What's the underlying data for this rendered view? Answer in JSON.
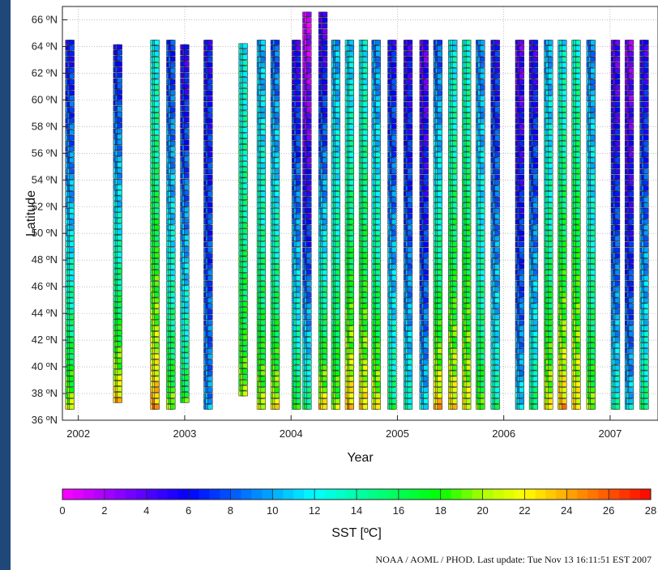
{
  "chart_data": {
    "type": "scatter",
    "title": "",
    "xlabel": "Year",
    "ylabel": "Latitude",
    "xlim": [
      2001.85,
      2007.45
    ],
    "ylim": [
      36,
      67
    ],
    "x_ticks": [
      "2002",
      "2003",
      "2004",
      "2005",
      "2006",
      "2007"
    ],
    "x_tick_values": [
      2002,
      2003,
      2004,
      2005,
      2006,
      2007
    ],
    "y_ticks": [
      "36 ºN",
      "38 ºN",
      "40 ºN",
      "42 ºN",
      "44 ºN",
      "46 ºN",
      "48 ºN",
      "50 ºN",
      "52 ºN",
      "54 ºN",
      "56 ºN",
      "58 ºN",
      "60 ºN",
      "62 ºN",
      "64 ºN",
      "66 ºN"
    ],
    "y_tick_values": [
      36,
      38,
      40,
      42,
      44,
      46,
      48,
      50,
      52,
      54,
      56,
      58,
      60,
      62,
      64,
      66
    ],
    "grid": true,
    "colorbar": {
      "label": "SST [ºC]",
      "min": 0,
      "max": 28,
      "ticks": [
        "0",
        "2",
        "4",
        "6",
        "8",
        "10",
        "12",
        "14",
        "16",
        "18",
        "20",
        "22",
        "24",
        "26",
        "28"
      ],
      "tick_values": [
        0,
        2,
        4,
        6,
        8,
        10,
        12,
        14,
        16,
        18,
        20,
        22,
        24,
        26,
        28
      ],
      "colors": [
        "#ff00ff",
        "#aa00ff",
        "#5500ff",
        "#0000ff",
        "#0055ff",
        "#00aaff",
        "#00ffff",
        "#00ffaa",
        "#00ff55",
        "#00ff00",
        "#aaff00",
        "#ffff00",
        "#ffaa00",
        "#ff5500",
        "#ff0000"
      ]
    },
    "transects": [
      {
        "x": 2001.92,
        "lat_min": 37,
        "lat_max": 64.3,
        "sst_south": 21,
        "sst_north": 6
      },
      {
        "x": 2002.37,
        "lat_min": 37.5,
        "lat_max": 64.3,
        "sst_south": 24,
        "sst_north": 6
      },
      {
        "x": 2002.72,
        "lat_min": 37,
        "lat_max": 64.3,
        "sst_south": 25,
        "sst_north": 12
      },
      {
        "x": 2002.87,
        "lat_min": 37,
        "lat_max": 64.3,
        "sst_south": 20,
        "sst_north": 7
      },
      {
        "x": 2003.0,
        "lat_min": 37.5,
        "lat_max": 64.3,
        "sst_south": 18,
        "sst_north": 5
      },
      {
        "x": 2003.22,
        "lat_min": 37,
        "lat_max": 64.3,
        "sst_south": 10,
        "sst_north": 6
      },
      {
        "x": 2003.55,
        "lat_min": 38,
        "lat_max": 64.3,
        "sst_south": 20,
        "sst_north": 12
      },
      {
        "x": 2003.72,
        "lat_min": 37,
        "lat_max": 64.3,
        "sst_south": 21,
        "sst_north": 10
      },
      {
        "x": 2003.85,
        "lat_min": 37,
        "lat_max": 64.3,
        "sst_south": 22,
        "sst_north": 8
      },
      {
        "x": 2004.05,
        "lat_min": 37,
        "lat_max": 64.3,
        "sst_south": 18,
        "sst_north": 5
      },
      {
        "x": 2004.15,
        "lat_min": 37,
        "lat_max": 66.6,
        "sst_south": 16,
        "sst_north": 1
      },
      {
        "x": 2004.3,
        "lat_min": 37,
        "lat_max": 66.6,
        "sst_south": 23,
        "sst_north": 4
      },
      {
        "x": 2004.42,
        "lat_min": 37,
        "lat_max": 64.3,
        "sst_south": 20,
        "sst_north": 10
      },
      {
        "x": 2004.55,
        "lat_min": 37,
        "lat_max": 64.3,
        "sst_south": 24,
        "sst_north": 11
      },
      {
        "x": 2004.68,
        "lat_min": 37,
        "lat_max": 64.3,
        "sst_south": 23,
        "sst_north": 12
      },
      {
        "x": 2004.8,
        "lat_min": 37,
        "lat_max": 64.3,
        "sst_south": 22,
        "sst_north": 9
      },
      {
        "x": 2004.95,
        "lat_min": 37,
        "lat_max": 64.3,
        "sst_south": 16,
        "sst_north": 6
      },
      {
        "x": 2005.1,
        "lat_min": 37,
        "lat_max": 64.3,
        "sst_south": 14,
        "sst_north": 5
      },
      {
        "x": 2005.25,
        "lat_min": 37,
        "lat_max": 64.3,
        "sst_south": 12,
        "sst_north": 4
      },
      {
        "x": 2005.38,
        "lat_min": 37,
        "lat_max": 64.3,
        "sst_south": 24,
        "sst_north": 8
      },
      {
        "x": 2005.52,
        "lat_min": 37,
        "lat_max": 64.3,
        "sst_south": 23,
        "sst_north": 12
      },
      {
        "x": 2005.65,
        "lat_min": 37,
        "lat_max": 64.3,
        "sst_south": 22,
        "sst_north": 13
      },
      {
        "x": 2005.78,
        "lat_min": 37,
        "lat_max": 64.3,
        "sst_south": 19,
        "sst_north": 9
      },
      {
        "x": 2005.92,
        "lat_min": 37,
        "lat_max": 64.3,
        "sst_south": 15,
        "sst_north": 6
      },
      {
        "x": 2006.15,
        "lat_min": 37,
        "lat_max": 64.3,
        "sst_south": 12,
        "sst_north": 4
      },
      {
        "x": 2006.28,
        "lat_min": 37,
        "lat_max": 64.3,
        "sst_south": 16,
        "sst_north": 5
      },
      {
        "x": 2006.42,
        "lat_min": 37,
        "lat_max": 64.3,
        "sst_south": 22,
        "sst_north": 10
      },
      {
        "x": 2006.55,
        "lat_min": 37,
        "lat_max": 64.3,
        "sst_south": 24,
        "sst_north": 12
      },
      {
        "x": 2006.68,
        "lat_min": 37,
        "lat_max": 64.3,
        "sst_south": 23,
        "sst_north": 13
      },
      {
        "x": 2006.82,
        "lat_min": 37,
        "lat_max": 64.3,
        "sst_south": 20,
        "sst_north": 9
      },
      {
        "x": 2007.05,
        "lat_min": 37,
        "lat_max": 64.3,
        "sst_south": 14,
        "sst_north": 4
      },
      {
        "x": 2007.18,
        "lat_min": 37,
        "lat_max": 64.3,
        "sst_south": 12,
        "sst_north": 3
      },
      {
        "x": 2007.32,
        "lat_min": 37,
        "lat_max": 64.3,
        "sst_south": 16,
        "sst_north": 5
      }
    ]
  },
  "footer": {
    "text": "NOAA / AOML / PHOD.   Last update: Tue Nov 13 16:11:51 EST 2007"
  }
}
